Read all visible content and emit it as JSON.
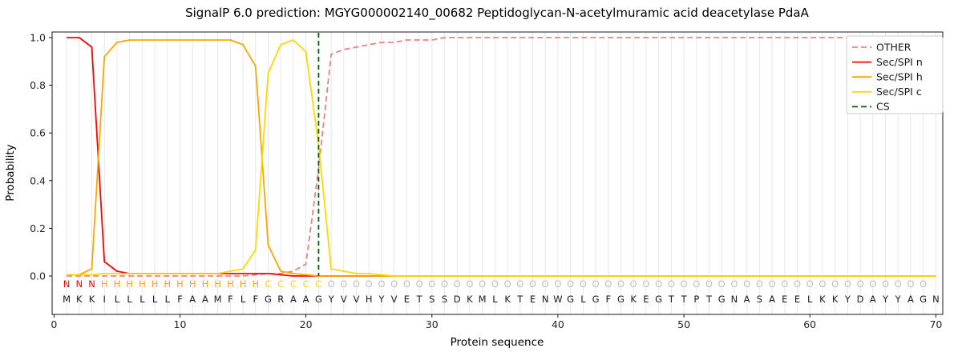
{
  "title": "SignalP 6.0 prediction: MGYG000002140_00682 Peptidoglycan-N-acetylmuramic acid deacetylase PdaA",
  "axes": {
    "xlabel": "Protein sequence",
    "ylabel": "Probability",
    "x_ticks": [
      0,
      10,
      20,
      30,
      40,
      50,
      60,
      70
    ],
    "y_ticks": [
      "0.0",
      "0.2",
      "0.4",
      "0.6",
      "0.8",
      "1.0"
    ],
    "grid": "vertical-per-residue",
    "gridline_color": "#e7e7e7"
  },
  "legend": {
    "position": "upper right",
    "labels": [
      "OTHER",
      "Sec/SPI n",
      "Sec/SPI h",
      "Sec/SPI c",
      "CS"
    ]
  },
  "chart_data": {
    "type": "line",
    "x_start": 1,
    "x_end": 70,
    "xlabel": "Protein sequence",
    "ylabel": "Probability",
    "ylim": [
      0,
      1.05
    ],
    "series": [
      {
        "name": "OTHER",
        "color": "#f08080",
        "dash": true,
        "values": [
          0,
          0,
          0,
          0,
          0,
          0,
          0,
          0,
          0,
          0,
          0,
          0,
          0,
          0,
          0,
          0.005,
          0.01,
          0.01,
          0.02,
          0.05,
          0.45,
          0.93,
          0.95,
          0.96,
          0.97,
          0.98,
          0.98,
          0.99,
          0.99,
          0.99,
          1,
          1,
          1,
          1,
          1,
          1,
          1,
          1,
          1,
          1,
          1,
          1,
          1,
          1,
          1,
          1,
          1,
          1,
          1,
          1,
          1,
          1,
          1,
          1,
          1,
          1,
          1,
          1,
          1,
          1,
          1,
          1,
          1,
          1,
          1,
          1,
          1,
          1,
          1,
          1
        ]
      },
      {
        "name": "Sec/SPI n",
        "color": "#ff0000",
        "dash": false,
        "values": [
          1,
          1,
          0.96,
          0.06,
          0.02,
          0.01,
          0.01,
          0.01,
          0.01,
          0.01,
          0.01,
          0.01,
          0.01,
          0.01,
          0.01,
          0.01,
          0.01,
          0.005,
          0,
          0,
          0,
          0,
          0,
          0,
          0,
          0,
          0,
          0,
          0,
          0,
          0,
          0,
          0,
          0,
          0,
          0,
          0,
          0,
          0,
          0,
          0,
          0,
          0,
          0,
          0,
          0,
          0,
          0,
          0,
          0,
          0,
          0,
          0,
          0,
          0,
          0,
          0,
          0,
          0,
          0,
          0,
          0,
          0,
          0,
          0,
          0,
          0,
          0,
          0,
          0
        ]
      },
      {
        "name": "Sec/SPI h",
        "color": "#ffa500",
        "dash": false,
        "values": [
          0.005,
          0.005,
          0.03,
          0.92,
          0.98,
          0.99,
          0.99,
          0.99,
          0.99,
          0.99,
          0.99,
          0.99,
          0.99,
          0.99,
          0.97,
          0.88,
          0.13,
          0.02,
          0.01,
          0.005,
          0,
          0,
          0,
          0,
          0,
          0,
          0,
          0,
          0,
          0,
          0,
          0,
          0,
          0,
          0,
          0,
          0,
          0,
          0,
          0,
          0,
          0,
          0,
          0,
          0,
          0,
          0,
          0,
          0,
          0,
          0,
          0,
          0,
          0,
          0,
          0,
          0,
          0,
          0,
          0,
          0,
          0,
          0,
          0,
          0,
          0,
          0,
          0,
          0,
          0
        ]
      },
      {
        "name": "Sec/SPI c",
        "color": "#ffd700",
        "dash": false,
        "values": [
          0.005,
          0.005,
          0.005,
          0.01,
          0.01,
          0.01,
          0.01,
          0.01,
          0.01,
          0.01,
          0.01,
          0.01,
          0.01,
          0.02,
          0.03,
          0.11,
          0.85,
          0.97,
          0.99,
          0.94,
          0.55,
          0.03,
          0.02,
          0.01,
          0.01,
          0.005,
          0,
          0,
          0,
          0,
          0,
          0,
          0,
          0,
          0,
          0,
          0,
          0,
          0,
          0,
          0,
          0,
          0,
          0,
          0,
          0,
          0,
          0,
          0,
          0,
          0,
          0,
          0,
          0,
          0,
          0,
          0,
          0,
          0,
          0,
          0,
          0,
          0,
          0,
          0,
          0,
          0,
          0,
          0,
          0
        ]
      }
    ],
    "cs": {
      "name": "CS",
      "position": 21,
      "color": "#006400",
      "dash": true
    }
  },
  "sequence": {
    "residues": "MKKILLLLLFAAMFLFGRAAGYVVHYVETSSDKMLKTENWGLGFGKEGTTPTGNASAEELKKYDAYYAGN",
    "region_labels": "NNNHHHHHHHHHHHHHCCCCCOOOOOOOOOOOOOOOOOOOOOOOOOOOOOOOOOOOOOOOOOOOOOOOO",
    "label_colors": {
      "N": "#ff0000",
      "H": "#ffa500",
      "C": "#ffd700",
      "O": "#bfbfbf"
    },
    "residue_color": "#1a1a1a"
  }
}
